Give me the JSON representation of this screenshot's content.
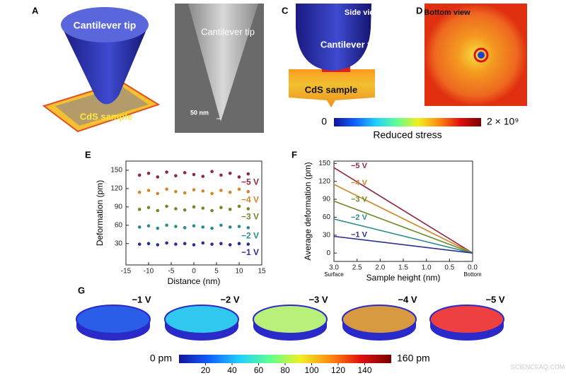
{
  "figure": {
    "panel_letters": [
      "A",
      "B",
      "C",
      "D",
      "E",
      "F",
      "G"
    ],
    "a_tip": "Cantilever tip",
    "a_sample": "CdS sample",
    "b_tip": "Cantilever tip",
    "b_scale": "50 nm",
    "c_view": "Side view",
    "c_tip": "Cantilever tip",
    "c_sample": "CdS sample",
    "d_view": "Bottom view",
    "watermark": "SCIENCEAQ.COM"
  },
  "colorbars": [
    {
      "label": "Reduced stress",
      "lim": [
        0,
        2000000000
      ],
      "ticks": [
        0,
        {
          "value": 2000000000,
          "label": "2 × 10⁹"
        }
      ],
      "colors": [
        "#14149a",
        "#1060ff",
        "#20d0ff",
        "#60ff90",
        "#f0f020",
        "#ff8a10",
        "#e01010",
        "#7a0000"
      ]
    },
    {
      "lim": [
        0,
        160
      ],
      "ticks": [
        {
          "value": 0,
          "label": "0 pm"
        },
        20,
        40,
        60,
        80,
        100,
        120,
        140,
        {
          "value": 160,
          "label": "160 pm"
        }
      ],
      "colors": [
        "#14149a",
        "#1060ff",
        "#20d0ff",
        "#60ff90",
        "#f0f020",
        "#ff8a10",
        "#e01010",
        "#7a0000"
      ]
    }
  ],
  "disks": [
    {
      "label": "−1 V",
      "color": "#2a5ee8"
    },
    {
      "label": "−2 V",
      "color": "#30c8ee"
    },
    {
      "label": "−3 V",
      "color": "#b8f07a"
    },
    {
      "label": "−4 V",
      "color": "#d89a40"
    },
    {
      "label": "−5 V",
      "color": "#ee4040"
    }
  ],
  "chart_data": [
    {
      "type": "scatter",
      "x_label": "Distance (nm)",
      "y_label": "Deformation (pm)",
      "xlim": [
        -15,
        15
      ],
      "xticks": [
        -15,
        -10,
        -5,
        0,
        5,
        10,
        15
      ],
      "ylim": [
        -5,
        165
      ],
      "yticks": [
        30,
        60,
        90,
        120,
        150
      ],
      "x": [
        -12,
        -10,
        -8,
        -6,
        -4,
        -2,
        0,
        2,
        4,
        6,
        8,
        10,
        12
      ],
      "series": [
        {
          "name": "−5 V",
          "color": "#8b2a3c",
          "values": [
            142,
            145,
            139,
            147,
            141,
            146,
            143,
            140,
            148,
            142,
            145,
            139,
            144
          ]
        },
        {
          "name": "−4 V",
          "color": "#d0862a",
          "values": [
            114,
            117,
            112,
            119,
            115,
            113,
            118,
            116,
            112,
            117,
            114,
            119,
            115
          ]
        },
        {
          "name": "−3 V",
          "color": "#6f8a2a",
          "values": [
            86,
            89,
            84,
            91,
            87,
            85,
            90,
            88,
            84,
            89,
            86,
            91,
            87
          ]
        },
        {
          "name": "−2 V",
          "color": "#2a8a8e",
          "values": [
            57,
            59,
            55,
            60,
            58,
            56,
            59,
            57,
            55,
            60,
            57,
            58,
            56
          ]
        },
        {
          "name": "−1 V",
          "color": "#2b2f8f",
          "values": [
            29,
            30,
            28,
            31,
            29,
            30,
            28,
            31,
            29,
            30,
            28,
            30,
            29
          ]
        }
      ]
    },
    {
      "type": "line",
      "x_label": "Sample height (nm)",
      "y_label": "Average deformation (pm)",
      "xlim": [
        3,
        0
      ],
      "xticks": [
        {
          "value": 3,
          "label": "3.0"
        },
        2.5,
        {
          "value": 2,
          "label": "2.0"
        },
        1.5,
        {
          "value": 1,
          "label": "1.0"
        },
        0.5,
        {
          "value": 0,
          "label": "0.0"
        }
      ],
      "ylim": [
        -14,
        154
      ],
      "yticks": [
        0,
        30,
        60,
        90,
        120,
        150
      ],
      "annotations": [
        {
          "text": "Surface",
          "x": 3
        },
        {
          "text": "Bottom",
          "x": 0
        }
      ],
      "x": [
        3,
        0
      ],
      "series": [
        {
          "name": "−5 V",
          "color": "#8b2a3c",
          "values": [
            143,
            0
          ]
        },
        {
          "name": "−4 V",
          "color": "#d0862a",
          "values": [
            115,
            0
          ]
        },
        {
          "name": "−3 V",
          "color": "#6f8a2a",
          "values": [
            87,
            0
          ]
        },
        {
          "name": "−2 V",
          "color": "#2a8a8e",
          "values": [
            57,
            0
          ]
        },
        {
          "name": "−1 V",
          "color": "#2b2f8f",
          "values": [
            28,
            0
          ]
        }
      ]
    }
  ]
}
